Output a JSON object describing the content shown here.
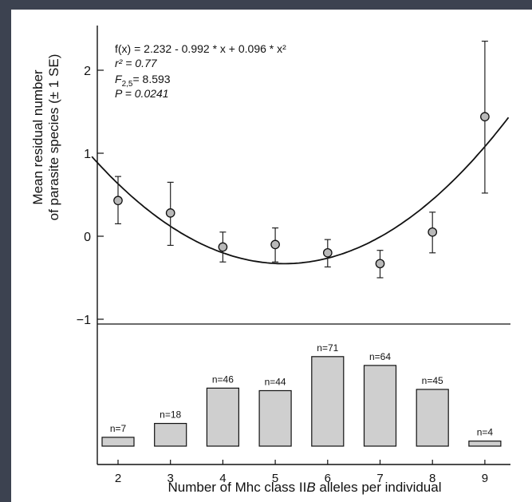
{
  "chart_data": [
    {
      "type": "scatter",
      "ylabel_line1": "Mean residual number",
      "ylabel_line2": "of parasite species (± 1 SE)",
      "yticks": [
        "2",
        "1",
        "0",
        "−1"
      ],
      "ylim": [
        -1,
        2.5
      ],
      "xlim": [
        1.5,
        9.5
      ],
      "annotations": {
        "equation": "f(x) = 2.232 - 0.992 * x + 0.096 * x²",
        "r2": "r² = 0.77",
        "f_stat": "F2,5= 8.593",
        "p_value": "P = 0.0241"
      },
      "fit": {
        "a": 2.232,
        "b": -0.992,
        "c": 0.096,
        "x_range": [
          1.5,
          9.45
        ]
      },
      "x": [
        2,
        3,
        4,
        5,
        6,
        7,
        8,
        9
      ],
      "y": [
        0.43,
        0.28,
        -0.13,
        -0.1,
        -0.2,
        -0.33,
        0.05,
        1.44
      ],
      "se_upper": [
        0.72,
        0.65,
        0.05,
        0.1,
        -0.04,
        -0.17,
        0.29,
        2.35
      ],
      "se_lower": [
        0.15,
        -0.11,
        -0.31,
        -0.31,
        -0.37,
        -0.5,
        -0.2,
        0.52
      ]
    },
    {
      "type": "bar",
      "categories": [
        "2",
        "3",
        "4",
        "5",
        "6",
        "7",
        "8",
        "9"
      ],
      "values": [
        7,
        18,
        46,
        44,
        71,
        64,
        45,
        4
      ],
      "labels": [
        "n=7",
        "n=18",
        "n=46",
        "n=44",
        "n=71",
        "n=64",
        "n=45",
        "n=4"
      ],
      "xlabel_prefix": "Number of Mhc class II",
      "xlabel_italic": "B",
      "xlabel_suffix": " alleles per individual",
      "ylim": [
        0,
        80
      ]
    }
  ],
  "colors": {
    "bar_fill": "#cfcfcf",
    "marker_fill": "#b9b9b9",
    "background": "#3c4250"
  }
}
